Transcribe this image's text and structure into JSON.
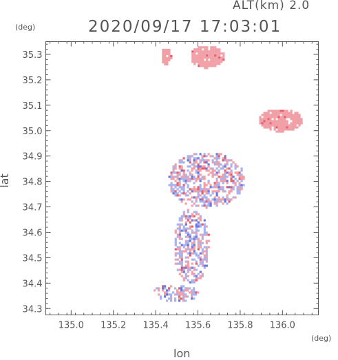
{
  "header": {
    "alt_label": "ALT(km) 2.0",
    "timestamp": "2020/09/17 17:03:01"
  },
  "chart_data": {
    "type": "scatter",
    "title": "2020/09/17 17:03:01",
    "xlabel": "lon",
    "ylabel": "lat",
    "x_unit": "(deg)",
    "y_unit": "(deg)",
    "xlim": [
      134.88,
      136.17
    ],
    "ylim": [
      34.275,
      35.35
    ],
    "x_ticks": [
      135.0,
      135.2,
      135.4,
      135.6,
      135.8,
      136.0
    ],
    "x_tick_labels": [
      "135.0",
      "135.2",
      "135.4",
      "135.6",
      "135.8",
      "136.0"
    ],
    "y_ticks": [
      34.3,
      34.4,
      34.5,
      34.6,
      34.7,
      34.8,
      34.9,
      35.0,
      35.1,
      35.2,
      35.3
    ],
    "y_tick_labels": [
      "34.3",
      "34.4",
      "34.5",
      "34.6",
      "34.7",
      "34.8",
      "34.9",
      "35.0",
      "35.1",
      "35.2",
      "35.3"
    ],
    "grid": false,
    "colors": {
      "positive": "#f2a0a8",
      "strong_positive": "#e56070",
      "negative": "#a8b4f0",
      "strong_negative": "#6a78e0"
    },
    "regions": [
      {
        "name": "north-blob-west",
        "lon": [
          135.42,
          135.47
        ],
        "lat": [
          35.26,
          35.33
        ],
        "sign": "positive"
      },
      {
        "name": "north-blob-east",
        "lon": [
          135.56,
          135.72
        ],
        "lat": [
          35.25,
          35.34
        ],
        "sign": "positive"
      },
      {
        "name": "northeast-blob",
        "lon": [
          135.88,
          136.09
        ],
        "lat": [
          35.0,
          35.09
        ],
        "sign": "positive"
      },
      {
        "name": "central-scatter",
        "lon": [
          135.45,
          135.82
        ],
        "lat": [
          34.7,
          34.92
        ],
        "sign": "mixed"
      },
      {
        "name": "south-cluster",
        "lon": [
          135.48,
          135.65
        ],
        "lat": [
          34.4,
          34.7
        ],
        "sign": "mixed"
      },
      {
        "name": "south-tail",
        "lon": [
          135.38,
          135.6
        ],
        "lat": [
          34.33,
          34.4
        ],
        "sign": "mixed"
      }
    ]
  }
}
